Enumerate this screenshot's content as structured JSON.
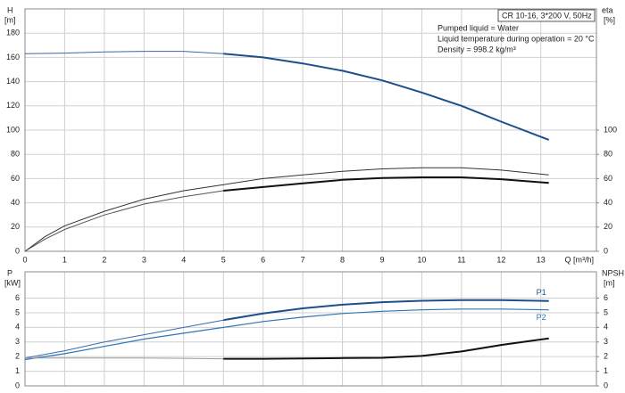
{
  "chart_data": [
    {
      "type": "line",
      "model": "CR 10-16, 3*200 V, 50Hz",
      "annotations": [
        "Pumped liquid = Water",
        "Liquid temperature during operation = 20 °C",
        "Density = 998.2 kg/m³"
      ],
      "ylabel": "H",
      "yunit": "[m]",
      "y2label": "eta",
      "y2unit": "[%]",
      "xlabel": "Q [m³/h]",
      "xlim": [
        0,
        14.4
      ],
      "xticks": [
        0,
        1,
        2,
        3,
        4,
        5,
        6,
        7,
        8,
        9,
        10,
        11,
        12,
        13
      ],
      "ylim": [
        0,
        200
      ],
      "yticks": [
        0,
        20,
        40,
        60,
        80,
        100,
        120,
        140,
        160,
        180
      ],
      "y2lim": [
        0,
        200
      ],
      "y2ticks": [
        0,
        20,
        40,
        60,
        80,
        100
      ],
      "grid": true,
      "series": [
        {
          "color": "#3b6aa8",
          "width": 1,
          "x": [
            0,
            1,
            2,
            3,
            4,
            5
          ],
          "values": [
            163,
            163.5,
            164.5,
            165,
            165,
            163
          ]
        },
        {
          "color": "#1f4e8c",
          "width": 2,
          "x": [
            5,
            6,
            7,
            8,
            9,
            10,
            11,
            12,
            13.2
          ],
          "values": [
            163,
            160,
            155,
            149,
            141,
            131,
            120,
            107,
            92
          ]
        },
        {
          "color": "#333333",
          "width": 1,
          "axis": "y2",
          "x": [
            0,
            0.5,
            1,
            2,
            3,
            4,
            5,
            6,
            7,
            8,
            9,
            10,
            11,
            12,
            13.2
          ],
          "values": [
            0,
            12,
            21,
            33,
            43,
            50,
            55,
            60,
            63,
            66,
            68,
            69,
            69,
            67,
            63
          ]
        },
        {
          "color": "#555555",
          "width": 1,
          "axis": "y2",
          "x": [
            0,
            0.5,
            1,
            2,
            3,
            4,
            5
          ],
          "values": [
            0,
            10,
            18,
            30,
            39,
            45,
            50
          ]
        },
        {
          "color": "#111111",
          "width": 2,
          "axis": "y2",
          "x": [
            5,
            6,
            7,
            8,
            9,
            10,
            11,
            12,
            13.2
          ],
          "values": [
            50,
            53,
            56,
            59,
            60.5,
            61,
            61,
            59.5,
            56.5
          ]
        }
      ]
    },
    {
      "type": "line",
      "ylabel": "P",
      "yunit": "[kW]",
      "y2label": "NPSH",
      "y2unit": "[m]",
      "xlim": [
        0,
        14.4
      ],
      "xticks": [
        0,
        1,
        2,
        3,
        4,
        5,
        6,
        7,
        8,
        9,
        10,
        11,
        12,
        13
      ],
      "ylim": [
        0,
        7.8
      ],
      "yticks": [
        0,
        1,
        2,
        3,
        4,
        5,
        6
      ],
      "y2lim": [
        0,
        7.8
      ],
      "y2ticks": [
        0,
        1,
        2,
        3,
        4,
        5,
        6
      ],
      "grid": true,
      "series": [
        {
          "color": "#3b6aa8",
          "width": 1,
          "x": [
            0,
            1,
            2,
            3,
            4,
            5
          ],
          "values": [
            1.9,
            2.4,
            3,
            3.5,
            4,
            4.5
          ]
        },
        {
          "name": "P1",
          "color": "#1f4e8c",
          "width": 2,
          "x": [
            5,
            6,
            7,
            8,
            9,
            10,
            11,
            12,
            13.2
          ],
          "values": [
            4.5,
            4.95,
            5.3,
            5.55,
            5.72,
            5.82,
            5.87,
            5.87,
            5.8
          ]
        },
        {
          "name": "P2",
          "color": "#2e75b6",
          "width": 1.2,
          "x": [
            0,
            1,
            2,
            3,
            4,
            5,
            6,
            7,
            8,
            9,
            10,
            11,
            12,
            13.2
          ],
          "values": [
            1.8,
            2.2,
            2.7,
            3.2,
            3.6,
            4,
            4.4,
            4.7,
            4.95,
            5.1,
            5.2,
            5.25,
            5.25,
            5.2
          ]
        },
        {
          "color": "#999999",
          "width": 1,
          "axis": "y2",
          "x": [
            0,
            1,
            2,
            3,
            4,
            5
          ],
          "values": [
            1.9,
            1.9,
            1.9,
            1.9,
            1.88,
            1.85
          ]
        },
        {
          "color": "#111111",
          "width": 2,
          "axis": "y2",
          "x": [
            5,
            6,
            7,
            8,
            9,
            10,
            11,
            12,
            13.2
          ],
          "values": [
            1.85,
            1.85,
            1.87,
            1.9,
            1.92,
            2.05,
            2.35,
            2.8,
            3.25
          ]
        }
      ]
    }
  ]
}
